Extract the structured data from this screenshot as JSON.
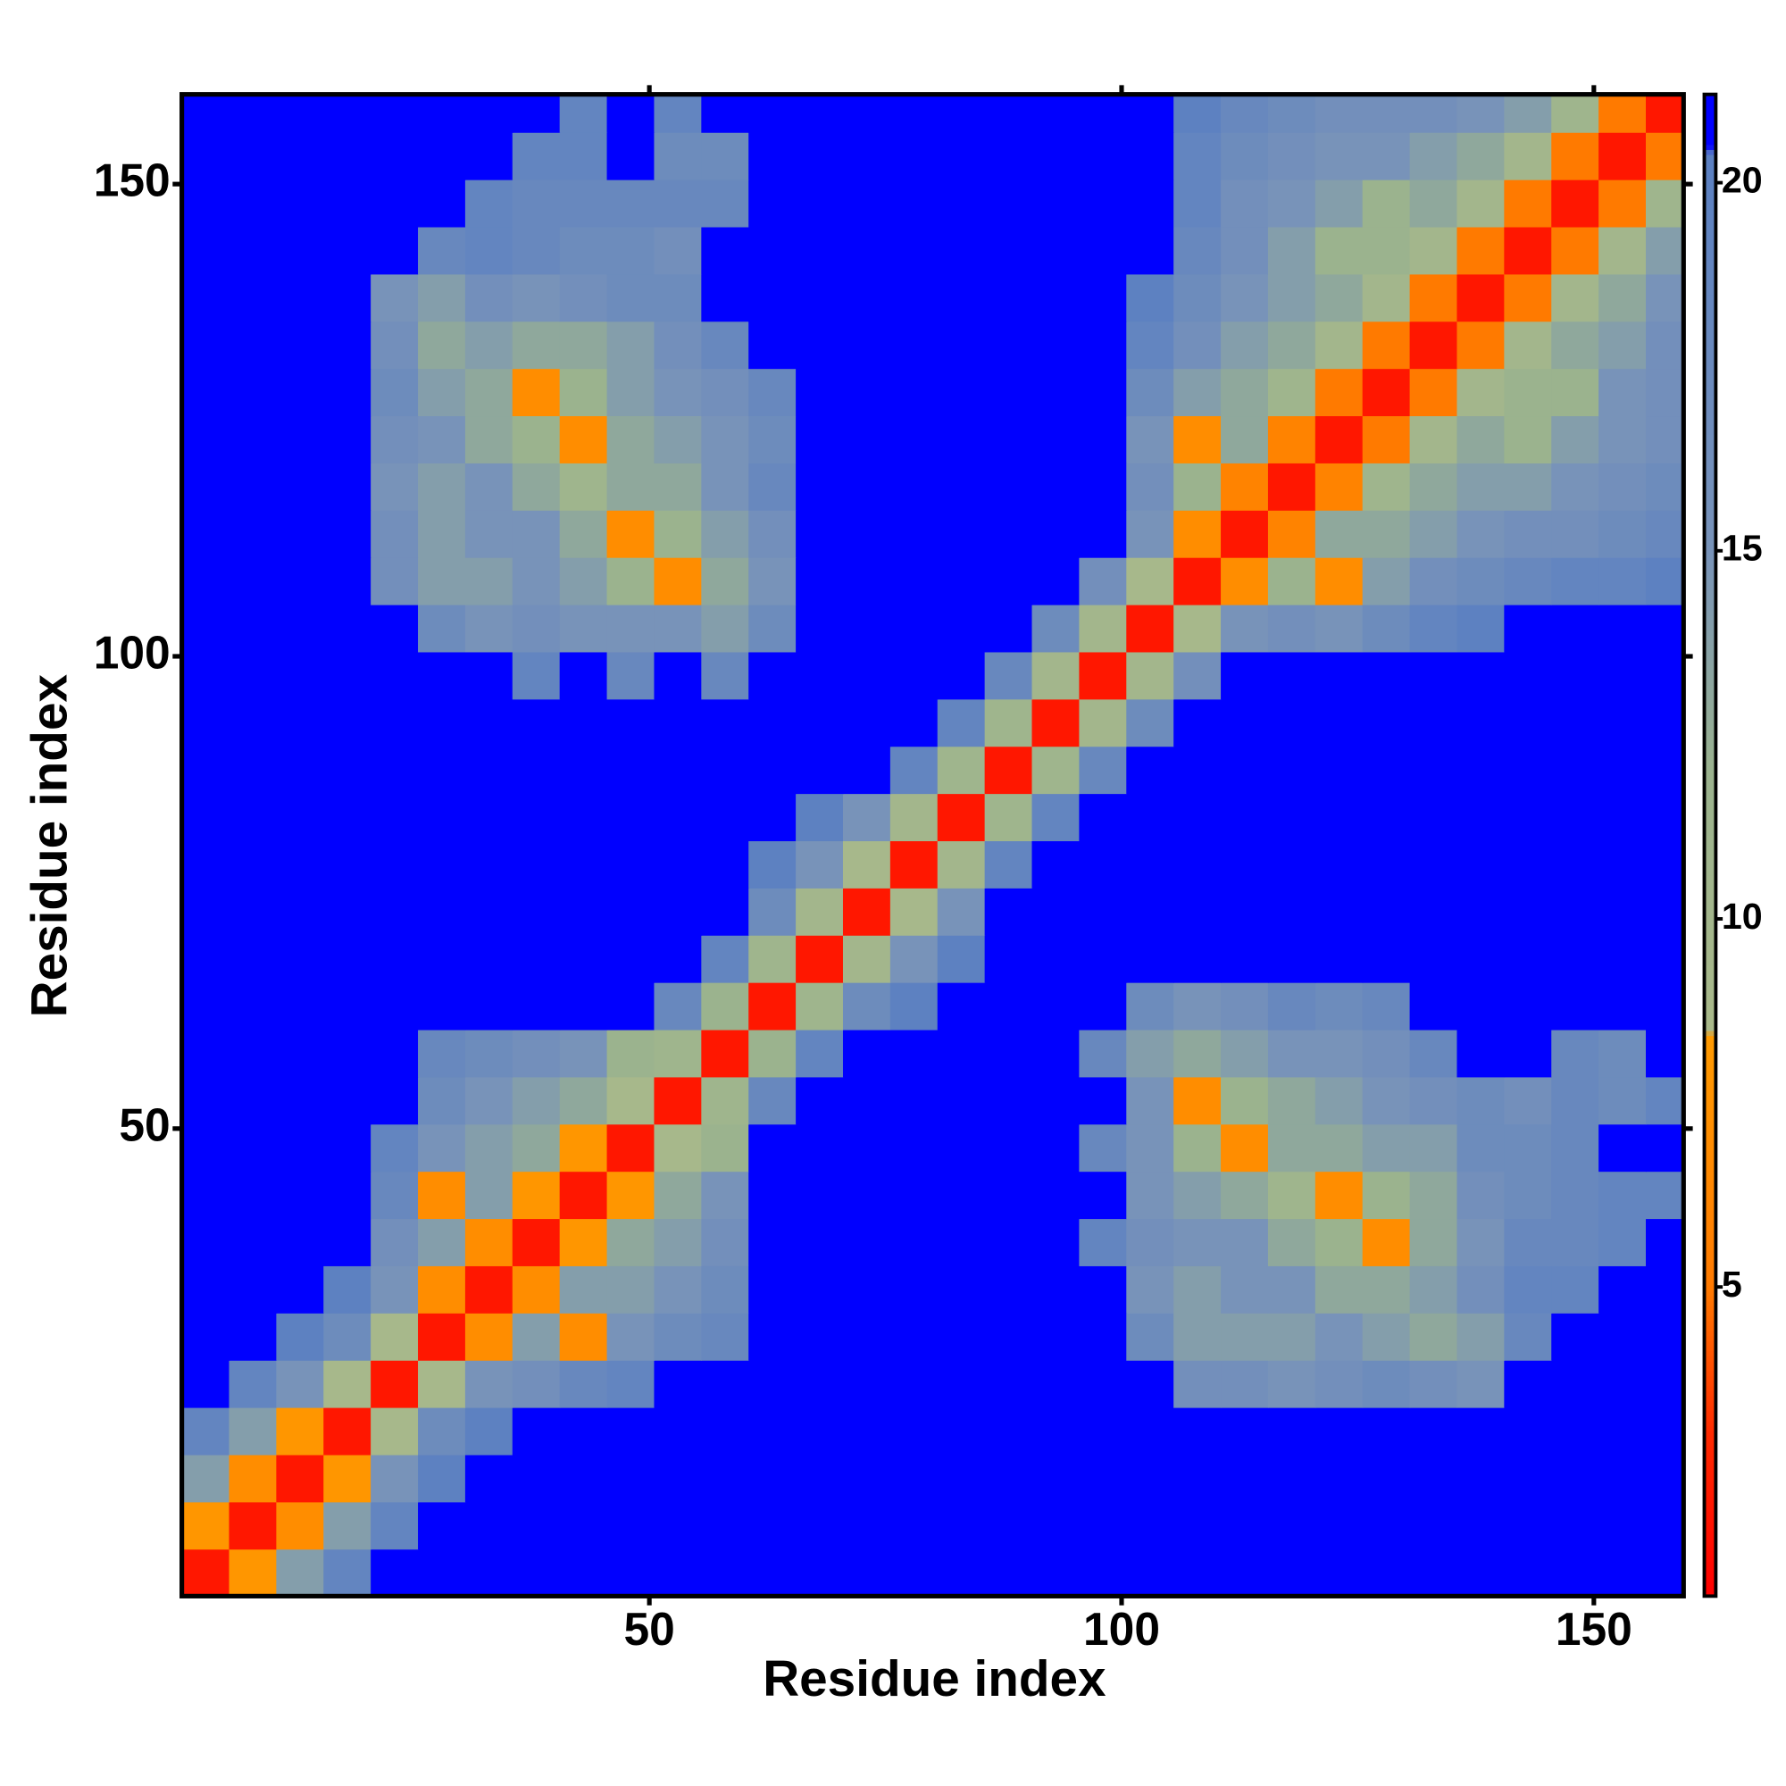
{
  "chart_data": {
    "type": "heatmap",
    "xlabel": "Residue index",
    "ylabel": "Residue index",
    "xbins": [
      0.5,
      5.5,
      10.5,
      15.5,
      20.5,
      25.5,
      30.5,
      35.5,
      40.5,
      45.5,
      50.5,
      55.5,
      60.5,
      65.5,
      70.5,
      75.5,
      80.5,
      85.5,
      90.5,
      95.5,
      100.5,
      105.5,
      110.5,
      115.5,
      120.5,
      125.5,
      130.5,
      135.5,
      140.5,
      145.5,
      150.5,
      155.5,
      159.5
    ],
    "ybins": [
      0.5,
      5.5,
      10.5,
      15.5,
      20.5,
      25.5,
      30.5,
      35.5,
      40.5,
      45.5,
      50.5,
      55.5,
      60.5,
      65.5,
      70.5,
      75.5,
      80.5,
      85.5,
      90.5,
      95.5,
      100.5,
      105.5,
      110.5,
      115.5,
      120.5,
      125.5,
      130.5,
      135.5,
      140.5,
      145.5,
      150.5,
      155.5,
      159.5
    ],
    "values": [
      [
        2,
        8,
        14,
        19,
        21,
        21,
        21,
        21,
        21,
        21,
        21,
        21,
        21,
        21,
        21,
        21,
        21,
        21,
        21,
        21,
        21,
        21,
        21,
        21,
        21,
        21,
        21,
        21,
        21,
        21,
        21,
        21
      ],
      [
        8,
        2,
        7,
        14,
        19,
        21,
        21,
        21,
        21,
        21,
        21,
        21,
        21,
        21,
        21,
        21,
        21,
        21,
        21,
        21,
        21,
        21,
        21,
        21,
        21,
        21,
        21,
        21,
        21,
        21,
        21,
        21
      ],
      [
        14,
        7,
        2,
        8,
        15,
        20,
        21,
        21,
        21,
        21,
        21,
        21,
        21,
        21,
        21,
        21,
        21,
        21,
        21,
        21,
        21,
        21,
        21,
        21,
        21,
        21,
        21,
        21,
        21,
        21,
        21,
        21
      ],
      [
        19,
        14,
        8,
        2,
        9,
        17,
        20,
        21,
        21,
        21,
        21,
        21,
        21,
        21,
        21,
        21,
        21,
        21,
        21,
        21,
        21,
        21,
        21,
        21,
        21,
        21,
        21,
        21,
        21,
        21,
        21,
        21
      ],
      [
        21,
        19,
        15,
        9,
        2,
        9,
        15,
        16,
        18,
        19,
        21,
        21,
        21,
        21,
        21,
        21,
        21,
        21,
        21,
        21,
        21,
        16,
        16,
        15,
        16,
        17,
        16,
        15,
        21,
        21,
        21,
        21
      ],
      [
        21,
        21,
        20,
        17,
        9,
        2,
        7,
        14,
        7,
        15,
        17,
        18,
        21,
        21,
        21,
        21,
        21,
        21,
        21,
        21,
        17,
        14,
        14,
        14,
        15,
        14,
        13,
        14,
        18,
        21,
        21,
        21
      ],
      [
        21,
        21,
        21,
        20,
        15,
        7,
        2,
        7,
        14,
        14,
        15,
        17,
        21,
        21,
        21,
        21,
        21,
        21,
        21,
        21,
        15,
        14,
        15,
        15,
        13,
        13,
        14,
        16,
        19,
        19,
        21,
        21
      ],
      [
        21,
        21,
        21,
        21,
        16,
        14,
        7,
        2,
        8,
        13,
        14,
        16,
        21,
        21,
        21,
        21,
        21,
        21,
        21,
        19,
        16,
        15,
        15,
        13,
        12,
        7,
        13,
        15,
        18,
        18,
        19,
        21
      ],
      [
        21,
        21,
        21,
        21,
        18,
        7,
        14,
        8,
        2,
        8,
        13,
        15,
        21,
        21,
        21,
        21,
        21,
        21,
        21,
        21,
        15,
        14,
        13,
        11,
        7,
        12,
        13,
        16,
        17,
        18,
        19,
        19
      ],
      [
        21,
        21,
        21,
        21,
        19,
        15,
        14,
        13,
        8,
        2,
        9,
        12,
        21,
        21,
        21,
        21,
        21,
        21,
        21,
        18,
        15,
        12,
        7,
        13,
        13,
        14,
        14,
        17,
        17,
        18,
        21,
        21
      ],
      [
        21,
        21,
        21,
        21,
        21,
        17,
        15,
        14,
        13,
        9,
        2,
        11,
        18,
        21,
        21,
        21,
        21,
        21,
        21,
        21,
        15,
        7,
        12,
        13,
        14,
        15,
        16,
        17,
        16,
        18,
        17,
        19
      ],
      [
        21,
        21,
        21,
        21,
        21,
        18,
        17,
        16,
        15,
        12,
        11,
        2,
        12,
        19,
        21,
        21,
        21,
        21,
        21,
        18,
        14,
        13,
        14,
        15,
        15,
        16,
        18,
        21,
        21,
        18,
        17,
        21
      ],
      [
        21,
        21,
        21,
        21,
        21,
        21,
        21,
        21,
        21,
        21,
        18,
        12,
        2,
        11,
        17,
        20,
        21,
        21,
        21,
        21,
        17,
        15,
        16,
        18,
        17,
        18,
        21,
        21,
        21,
        21,
        21,
        21
      ],
      [
        21,
        21,
        21,
        21,
        21,
        21,
        21,
        21,
        21,
        21,
        21,
        19,
        11,
        2,
        10,
        15,
        20,
        21,
        21,
        21,
        21,
        21,
        21,
        21,
        21,
        21,
        21,
        21,
        21,
        21,
        21,
        21
      ],
      [
        21,
        21,
        21,
        21,
        21,
        21,
        21,
        21,
        21,
        21,
        21,
        21,
        17,
        10,
        2,
        9,
        15,
        21,
        21,
        21,
        21,
        21,
        21,
        21,
        21,
        21,
        21,
        21,
        21,
        21,
        21,
        21
      ],
      [
        21,
        21,
        21,
        21,
        21,
        21,
        21,
        21,
        21,
        21,
        21,
        21,
        20,
        15,
        9,
        2,
        10,
        19,
        21,
        21,
        21,
        21,
        21,
        21,
        21,
        21,
        21,
        21,
        21,
        21,
        21,
        21
      ],
      [
        21,
        21,
        21,
        21,
        21,
        21,
        21,
        21,
        21,
        21,
        21,
        21,
        21,
        20,
        15,
        10,
        2,
        11,
        19,
        21,
        21,
        21,
        21,
        21,
        21,
        21,
        21,
        21,
        21,
        21,
        21,
        21
      ],
      [
        21,
        21,
        21,
        21,
        21,
        21,
        21,
        21,
        21,
        21,
        21,
        21,
        21,
        21,
        21,
        19,
        11,
        2,
        11,
        18,
        21,
        21,
        21,
        21,
        21,
        21,
        21,
        21,
        21,
        21,
        21,
        21
      ],
      [
        21,
        21,
        21,
        21,
        21,
        21,
        21,
        21,
        21,
        21,
        21,
        21,
        21,
        21,
        21,
        21,
        19,
        11,
        2,
        10,
        17,
        21,
        21,
        21,
        21,
        21,
        21,
        21,
        21,
        21,
        21,
        21
      ],
      [
        21,
        21,
        21,
        21,
        21,
        21,
        21,
        19,
        21,
        18,
        21,
        18,
        21,
        21,
        21,
        21,
        21,
        18,
        10,
        2,
        10,
        16,
        21,
        21,
        21,
        21,
        21,
        21,
        21,
        21,
        21,
        21
      ],
      [
        21,
        21,
        21,
        21,
        21,
        17,
        15,
        16,
        15,
        15,
        15,
        14,
        17,
        21,
        21,
        21,
        21,
        21,
        17,
        10,
        2,
        9,
        15,
        16,
        15,
        17,
        19,
        20,
        21,
        21,
        21,
        21
      ],
      [
        21,
        21,
        21,
        21,
        16,
        14,
        14,
        15,
        14,
        12,
        7,
        13,
        15,
        21,
        21,
        21,
        21,
        21,
        21,
        16,
        9,
        2,
        7,
        12,
        7,
        14,
        16,
        17,
        18,
        19,
        19,
        20
      ],
      [
        21,
        21,
        21,
        21,
        16,
        14,
        15,
        15,
        13,
        7,
        12,
        14,
        16,
        21,
        21,
        21,
        21,
        21,
        21,
        21,
        15,
        7,
        2,
        6,
        13,
        13,
        14,
        15,
        16,
        16,
        17,
        18
      ],
      [
        21,
        21,
        21,
        21,
        15,
        14,
        15,
        13,
        11,
        13,
        13,
        15,
        18,
        21,
        21,
        21,
        21,
        21,
        21,
        21,
        16,
        12,
        6,
        2,
        6,
        11,
        13,
        14,
        14,
        15,
        16,
        17
      ],
      [
        21,
        21,
        21,
        21,
        16,
        15,
        13,
        12,
        7,
        13,
        14,
        15,
        17,
        21,
        21,
        21,
        21,
        21,
        21,
        21,
        15,
        7,
        13,
        6,
        2,
        5,
        10,
        13,
        12,
        14,
        15,
        16
      ],
      [
        21,
        21,
        21,
        21,
        17,
        14,
        13,
        7,
        12,
        14,
        15,
        16,
        18,
        21,
        21,
        21,
        21,
        21,
        21,
        21,
        17,
        14,
        13,
        11,
        5,
        2,
        5,
        10,
        12,
        12,
        15,
        16
      ],
      [
        21,
        21,
        21,
        21,
        16,
        13,
        14,
        13,
        13,
        14,
        16,
        18,
        21,
        21,
        21,
        21,
        21,
        21,
        21,
        21,
        19,
        16,
        14,
        13,
        10,
        5,
        2,
        5,
        10,
        13,
        14,
        16
      ],
      [
        21,
        21,
        21,
        21,
        15,
        14,
        16,
        15,
        16,
        17,
        17,
        21,
        21,
        21,
        21,
        21,
        21,
        21,
        21,
        21,
        20,
        17,
        15,
        14,
        13,
        10,
        5,
        2,
        5,
        10,
        13,
        15
      ],
      [
        21,
        21,
        21,
        21,
        21,
        18,
        19,
        18,
        17,
        17,
        16,
        21,
        21,
        21,
        21,
        21,
        21,
        21,
        21,
        21,
        21,
        18,
        16,
        14,
        12,
        12,
        10,
        5,
        2,
        5,
        10,
        14
      ],
      [
        21,
        21,
        21,
        21,
        21,
        21,
        19,
        18,
        18,
        18,
        18,
        18,
        21,
        21,
        21,
        21,
        21,
        21,
        21,
        21,
        21,
        19,
        16,
        15,
        14,
        12,
        13,
        10,
        5,
        2,
        5,
        11
      ],
      [
        21,
        21,
        21,
        21,
        21,
        21,
        21,
        19,
        19,
        21,
        17,
        17,
        21,
        21,
        21,
        21,
        21,
        21,
        21,
        21,
        21,
        19,
        17,
        16,
        15,
        15,
        14,
        13,
        10,
        5,
        2,
        5
      ],
      [
        21,
        21,
        21,
        21,
        21,
        21,
        21,
        21,
        19,
        21,
        19,
        21,
        21,
        21,
        21,
        21,
        21,
        21,
        21,
        21,
        21,
        20,
        18,
        17,
        16,
        16,
        16,
        15,
        14,
        11,
        5,
        2
      ]
    ],
    "xlim": [
      0.5,
      159.5
    ],
    "ylim": [
      0.5,
      159.5
    ],
    "xticks": [
      50,
      100,
      150
    ],
    "yticks": [
      50,
      100,
      150
    ],
    "colorbar": {
      "lim": [
        0.8,
        21.2
      ],
      "ticks": [
        5,
        10,
        15,
        20
      ]
    },
    "colorscale": [
      [
        0.8,
        "#ff0000"
      ],
      [
        3,
        "#ff2a00"
      ],
      [
        5,
        "#ff7a00"
      ],
      [
        8.4,
        "#ff9a00"
      ],
      [
        8.5,
        "#a9b98a"
      ],
      [
        12,
        "#9bb38e"
      ],
      [
        15,
        "#7893b9"
      ],
      [
        20.4,
        "#5b80c2"
      ],
      [
        20.5,
        "#0000ff"
      ],
      [
        21.2,
        "#0000ff"
      ]
    ]
  }
}
